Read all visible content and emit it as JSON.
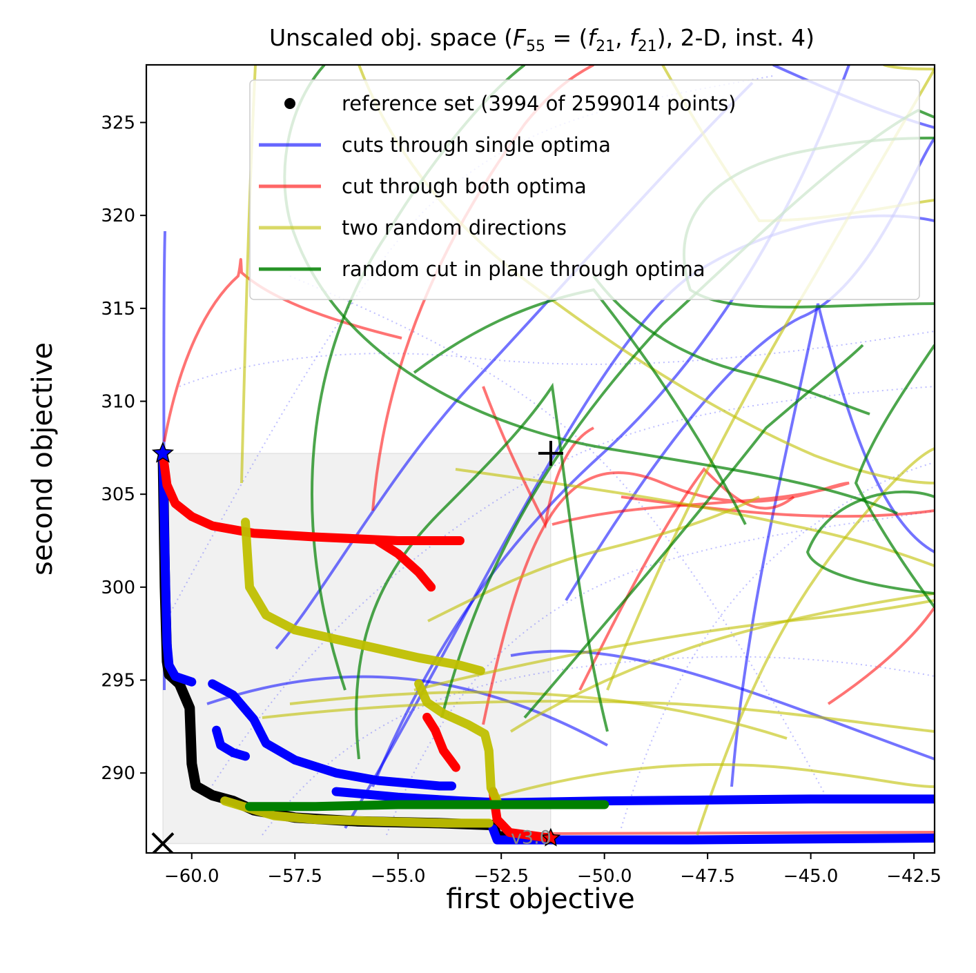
{
  "chart_data": {
    "type": "line",
    "title": "Unscaled obj. space ($F_{55}=(f_{21},f_{21})$, 2-D, inst. 4)",
    "title_parts": {
      "prefix": "Unscaled obj. space (",
      "F": "F",
      "F_sub": "55",
      "eq": " = (",
      "f1": "f",
      "f1_sub": "21",
      "comma": ", ",
      "f2": "f",
      "f2_sub": "21",
      "suffix": "), 2-D, inst. 4)"
    },
    "xlabel": "first objective",
    "ylabel": "second objective",
    "xlim": [
      -61.1,
      -42.0
    ],
    "ylim": [
      285.7,
      328.1
    ],
    "xticks": [
      -60.0,
      -57.5,
      -55.0,
      -52.5,
      -50.0,
      -47.5,
      -45.0,
      -42.5
    ],
    "xtick_labels": [
      "−60.0",
      "−57.5",
      "−55.0",
      "−52.5",
      "−50.0",
      "−47.5",
      "−45.0",
      "−42.5"
    ],
    "yticks": [
      290,
      295,
      300,
      305,
      310,
      315,
      320,
      325
    ],
    "ytick_labels": [
      "290",
      "295",
      "300",
      "305",
      "310",
      "315",
      "320",
      "325"
    ],
    "legend_position": "top-right",
    "legend": [
      {
        "label": "reference set (3994 of 2599014 points)",
        "color": "#000000",
        "kind": "dot"
      },
      {
        "label": "cuts through single optima",
        "color": "#0000ff",
        "kind": "line"
      },
      {
        "label": "cut through both optima",
        "color": "#ff0000",
        "kind": "line"
      },
      {
        "label": "two random directions",
        "color": "#bfbf00",
        "kind": "line"
      },
      {
        "label": "random cut in plane through optima",
        "color": "#008000",
        "kind": "line"
      }
    ],
    "annotation": "v3.0",
    "ideal_point": [
      -60.7,
      286.2
    ],
    "nadir_point": [
      -51.3,
      307.2
    ],
    "optimum_1": [
      -60.7,
      307.2
    ],
    "optimum_2": [
      -51.3,
      286.5
    ],
    "series": [
      {
        "name": "reference set (3994 of 2599014 points)",
        "color": "#000000",
        "points": [
          [
            -60.7,
            307.2
          ],
          [
            -60.65,
            300
          ],
          [
            -60.6,
            296
          ],
          [
            -60.55,
            295.3
          ],
          [
            -60.3,
            294.8
          ],
          [
            -60.05,
            293.5
          ],
          [
            -60.0,
            290.5
          ],
          [
            -59.9,
            289.3
          ],
          [
            -59.5,
            288.8
          ],
          [
            -59.0,
            288.5
          ],
          [
            -58.5,
            288.0
          ],
          [
            -57.5,
            287.6
          ],
          [
            -56.0,
            287.4
          ],
          [
            -54.0,
            287.3
          ],
          [
            -52.7,
            287.2
          ],
          [
            -52.6,
            286.6
          ],
          [
            -51.3,
            286.5
          ]
        ]
      },
      {
        "name": "cuts through single optima",
        "color": "#0000ff",
        "points": [
          [
            -60.7,
            307.2
          ],
          [
            -60.65,
            302
          ],
          [
            -60.6,
            297
          ],
          [
            -60.55,
            295.8
          ],
          [
            -60.4,
            295.2
          ],
          [
            -60.0,
            294.9
          ]
        ]
      },
      {
        "name": "cuts through single optima",
        "color": "#0000ff",
        "points": [
          [
            -59.5,
            294.8
          ],
          [
            -59.0,
            294.2
          ],
          [
            -58.5,
            292.9
          ],
          [
            -58.2,
            291.6
          ],
          [
            -57.5,
            290.7
          ],
          [
            -56.5,
            290.0
          ],
          [
            -55.5,
            289.6
          ],
          [
            -54.0,
            289.3
          ],
          [
            -53.7,
            289.3
          ]
        ]
      },
      {
        "name": "cuts through single optima",
        "color": "#0000ff",
        "points": [
          [
            -59.4,
            292.3
          ],
          [
            -59.3,
            291.5
          ],
          [
            -59.0,
            291.1
          ],
          [
            -58.7,
            290.9
          ]
        ]
      },
      {
        "name": "cuts through single optima",
        "color": "#0000ff",
        "points": [
          [
            -56.5,
            289.0
          ],
          [
            -55.0,
            288.7
          ],
          [
            -53.5,
            288.5
          ],
          [
            -52.5,
            288.4
          ],
          [
            -50.0,
            288.5
          ],
          [
            -45.0,
            288.6
          ],
          [
            -42.0,
            288.6
          ]
        ]
      },
      {
        "name": "cuts through single optima",
        "color": "#0000ff",
        "points": [
          [
            -52.7,
            287.0
          ],
          [
            -52.6,
            286.4
          ],
          [
            -51.3,
            286.4
          ],
          [
            -48.0,
            286.4
          ],
          [
            -42.0,
            286.5
          ]
        ]
      },
      {
        "name": "cut through both optima",
        "color": "#ff0000",
        "points": [
          [
            -60.7,
            307.2
          ],
          [
            -60.6,
            305.5
          ],
          [
            -60.4,
            304.5
          ],
          [
            -60.0,
            303.8
          ],
          [
            -59.5,
            303.3
          ],
          [
            -58.5,
            302.9
          ],
          [
            -57.0,
            302.7
          ],
          [
            -55.0,
            302.5
          ],
          [
            -53.5,
            302.5
          ]
        ]
      },
      {
        "name": "cut through both optima",
        "color": "#ff0000",
        "points": [
          [
            -55.5,
            302.5
          ],
          [
            -55.0,
            301.8
          ],
          [
            -54.5,
            300.8
          ],
          [
            -54.2,
            300.0
          ]
        ]
      },
      {
        "name": "cut through both optima",
        "color": "#ff0000",
        "points": [
          [
            -54.3,
            293.0
          ],
          [
            -54.1,
            292.3
          ],
          [
            -53.9,
            291.2
          ],
          [
            -53.7,
            290.6
          ],
          [
            -53.6,
            290.3
          ]
        ]
      },
      {
        "name": "cut through both optima",
        "color": "#ff0000",
        "points": [
          [
            -52.7,
            289.0
          ],
          [
            -52.6,
            287.5
          ],
          [
            -52.3,
            286.8
          ],
          [
            -51.3,
            286.5
          ]
        ]
      },
      {
        "name": "two random directions",
        "color": "#bfbf00",
        "points": [
          [
            -58.7,
            303.5
          ],
          [
            -58.6,
            300
          ],
          [
            -58.2,
            298.5
          ],
          [
            -57.5,
            297.7
          ],
          [
            -56.5,
            297.2
          ],
          [
            -55.5,
            296.7
          ],
          [
            -54.5,
            296.2
          ],
          [
            -53.5,
            295.8
          ],
          [
            -53.0,
            295.5
          ]
        ]
      },
      {
        "name": "two random directions",
        "color": "#bfbf00",
        "points": [
          [
            -59.2,
            288.5
          ],
          [
            -58.6,
            288.1
          ],
          [
            -58.0,
            287.7
          ],
          [
            -57.0,
            287.5
          ],
          [
            -55.5,
            287.4
          ],
          [
            -53.8,
            287.3
          ],
          [
            -52.8,
            287.3
          ]
        ]
      },
      {
        "name": "two random directions",
        "color": "#bfbf00",
        "points": [
          [
            -54.5,
            294.8
          ],
          [
            -54.3,
            293.8
          ],
          [
            -53.9,
            293.2
          ],
          [
            -53.3,
            292.6
          ],
          [
            -52.9,
            292.1
          ],
          [
            -52.8,
            291.2
          ],
          [
            -52.75,
            289.2
          ],
          [
            -52.6,
            288.5
          ]
        ]
      },
      {
        "name": "random cut in plane through optima",
        "color": "#008000",
        "points": [
          [
            -58.6,
            288.2
          ],
          [
            -57.0,
            288.2
          ],
          [
            -55.0,
            288.3
          ],
          [
            -53.0,
            288.3
          ],
          [
            -50.0,
            288.3
          ]
        ]
      }
    ]
  }
}
